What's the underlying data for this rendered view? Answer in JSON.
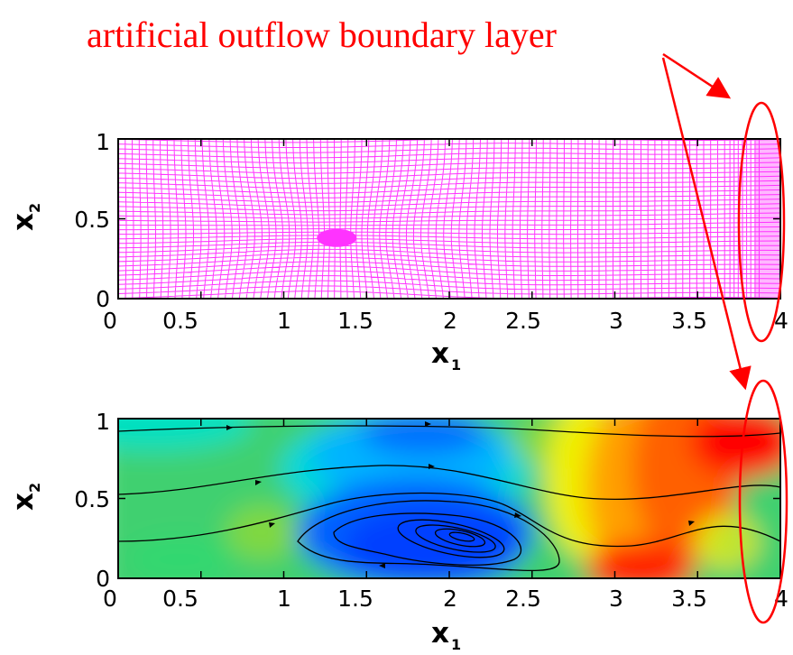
{
  "annotation": {
    "text": "artificial outflow boundary layer",
    "color": "#ff0000"
  },
  "panels": [
    {
      "kind": "mesh",
      "mesh_color": "#ff33ff",
      "x_ticks": [
        "0",
        "0.5",
        "1",
        "1.5",
        "2",
        "2.5",
        "3",
        "3.5",
        "4"
      ],
      "y_ticks": [
        "0",
        "0.5",
        "1"
      ],
      "x_label": "x",
      "x_label_sub": "1",
      "y_label": "x",
      "y_label_sub": "2"
    },
    {
      "kind": "contour-streamlines",
      "x_ticks": [
        "0",
        "0.5",
        "1",
        "1.5",
        "2",
        "2.5",
        "3",
        "3.5",
        "4"
      ],
      "y_ticks": [
        "0",
        "0.5",
        "1"
      ],
      "x_label": "x",
      "x_label_sub": "1",
      "y_label": "x",
      "y_label_sub": "2",
      "palette": [
        "#0000ff",
        "#0060ff",
        "#00b4ff",
        "#00e0c0",
        "#30e090",
        "#40d070",
        "#80d840",
        "#c0e000",
        "#f0f000",
        "#ffb000",
        "#ff7000",
        "#ff3000",
        "#ff0000"
      ]
    }
  ]
}
